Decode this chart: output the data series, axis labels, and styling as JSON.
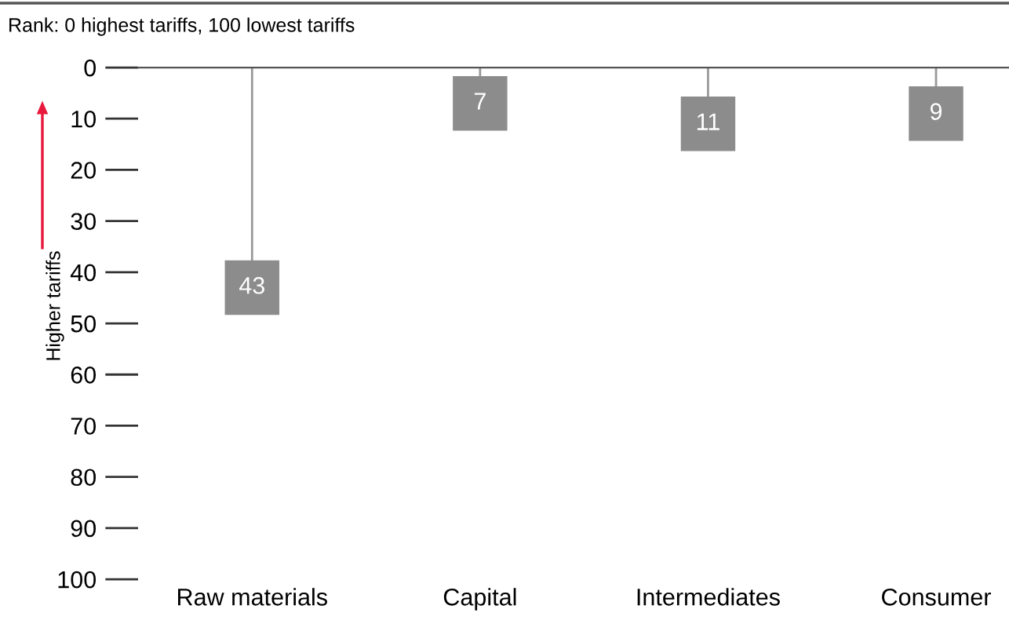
{
  "chart_data": {
    "type": "lollipop",
    "subtitle": "Rank: 0 highest tariffs, 100 lowest tariffs",
    "ylabel": "Higher tariffs",
    "categories": [
      "Raw materials",
      "Capital",
      "Intermediates",
      "Consumer"
    ],
    "values": [
      43,
      7,
      11,
      9
    ],
    "color": "#8c8c8c",
    "marker": "square",
    "data_labels": true,
    "ylim": [
      100,
      0
    ],
    "yticks": [
      0,
      10,
      20,
      30,
      40,
      50,
      60,
      70,
      80,
      90,
      100
    ],
    "grid": false,
    "legend": false
  }
}
